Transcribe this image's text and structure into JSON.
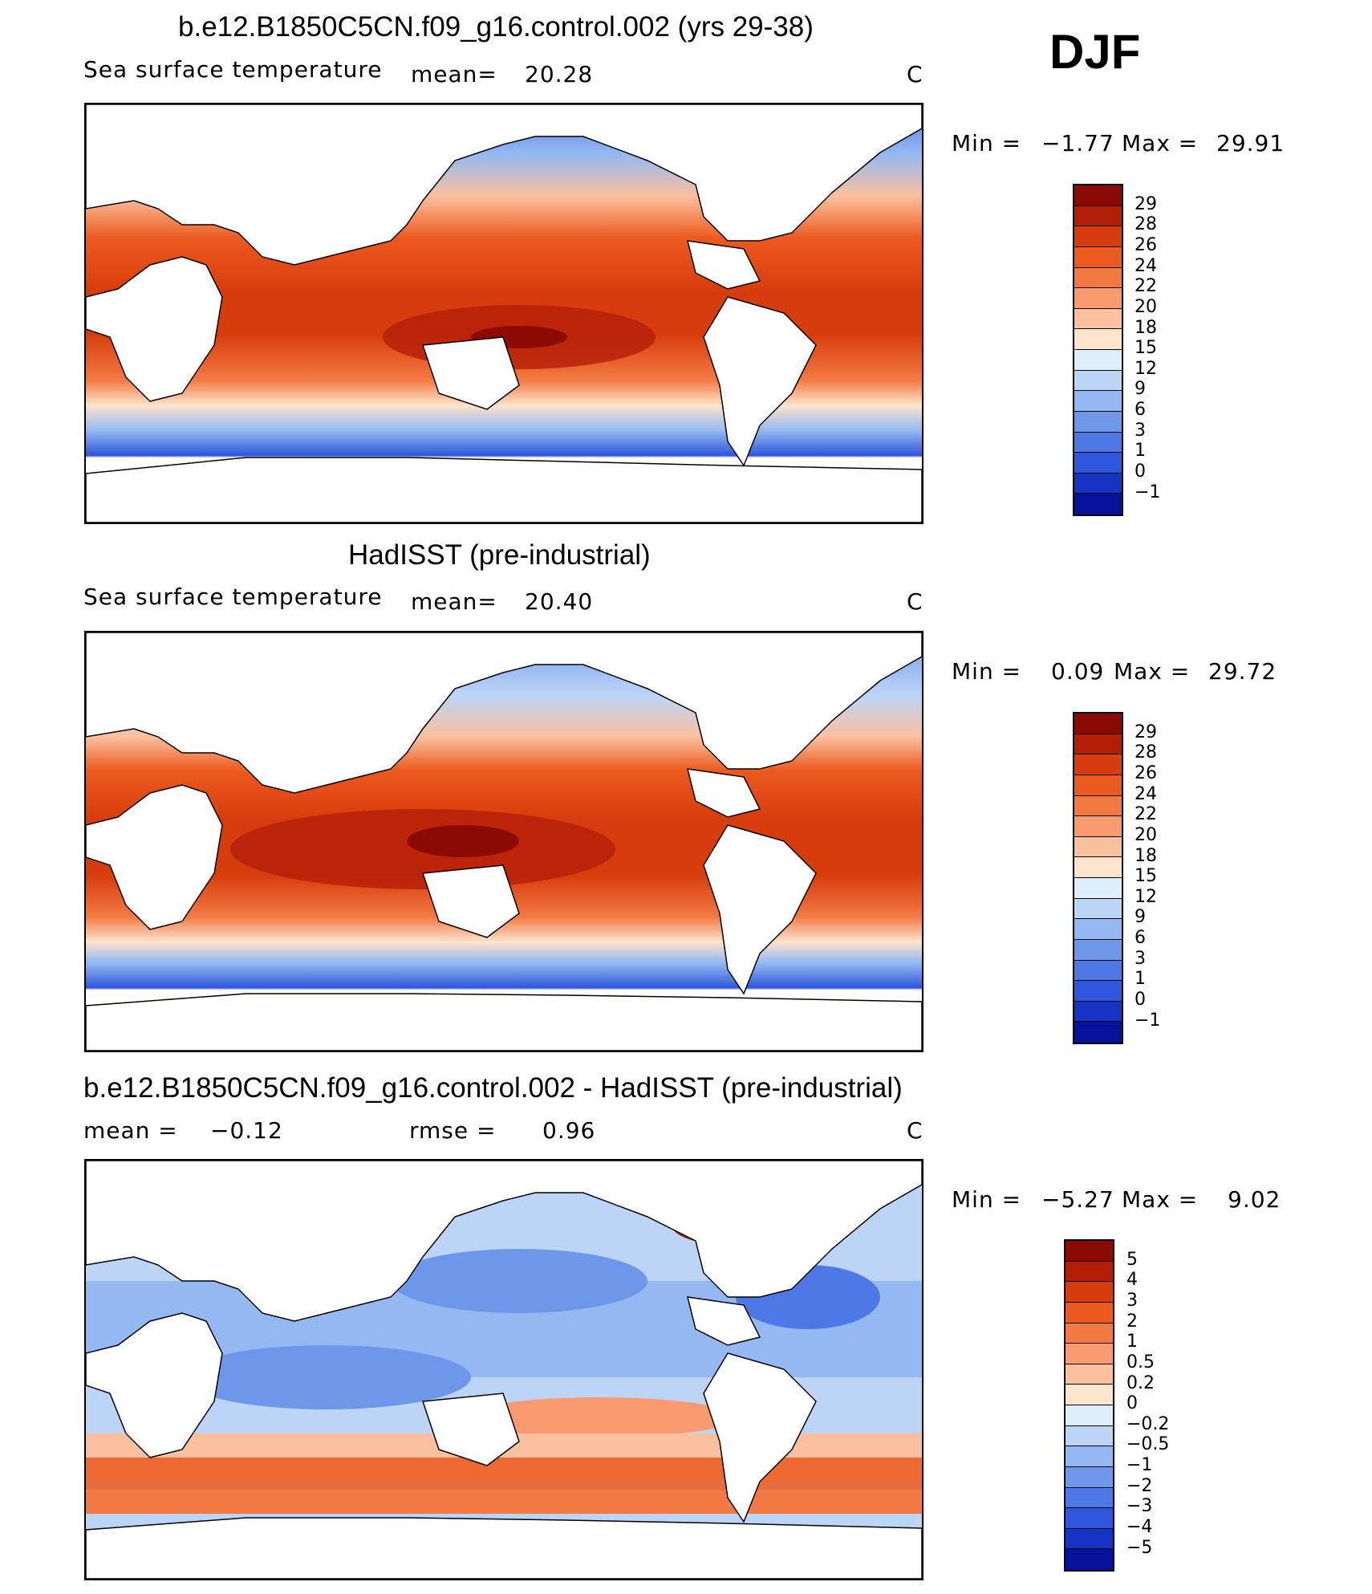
{
  "season_label": "DJF",
  "panels": [
    {
      "title": "b.e12.B1850C5CN.f09_g16.control.002 (yrs 29-38)",
      "left_label": "Sea surface temperature",
      "stat_label": "mean=",
      "stat_value": "20.28",
      "unit": "C",
      "range_text": {
        "min_label": "Min =",
        "min": "−1.77",
        "max_label": "Max =",
        "max": "29.91"
      },
      "colorbar": [
        "29",
        "28",
        "26",
        "24",
        "22",
        "20",
        "18",
        "15",
        "12",
        "9",
        "6",
        "3",
        "1",
        "0",
        "−1"
      ],
      "colors": [
        "#8b0a04",
        "#b41e07",
        "#d73c0c",
        "#ec5a1f",
        "#f47a43",
        "#f99a70",
        "#fbc09e",
        "#fde4cc",
        "#dfeefb",
        "#bcd5f7",
        "#94b9f2",
        "#6e97ea",
        "#4d78e6",
        "#2f56dc",
        "#1533c4",
        "#06119c"
      ]
    },
    {
      "title": "HadISST (pre-industrial)",
      "left_label": "Sea surface temperature",
      "stat_label": "mean=",
      "stat_value": "20.40",
      "unit": "C",
      "range_text": {
        "min_label": "Min =",
        "min": "0.09",
        "max_label": "Max =",
        "max": "29.72"
      },
      "colorbar": [
        "29",
        "28",
        "26",
        "24",
        "22",
        "20",
        "18",
        "15",
        "12",
        "9",
        "6",
        "3",
        "1",
        "0",
        "−1"
      ],
      "colors": [
        "#8b0a04",
        "#b41e07",
        "#d73c0c",
        "#ec5a1f",
        "#f47a43",
        "#f99a70",
        "#fbc09e",
        "#fde4cc",
        "#dfeefb",
        "#bcd5f7",
        "#94b9f2",
        "#6e97ea",
        "#4d78e6",
        "#2f56dc",
        "#1533c4",
        "#06119c"
      ]
    },
    {
      "title": "b.e12.B1850C5CN.f09_g16.control.002 - HadISST (pre-industrial)",
      "left_label": "mean =",
      "stat_label_left_value": "−0.12",
      "stat_label": "rmse =",
      "stat_value": "0.96",
      "unit": "C",
      "range_text": {
        "min_label": "Min =",
        "min": "−5.27",
        "max_label": "Max =",
        "max": "9.02"
      },
      "colorbar": [
        "5",
        "4",
        "3",
        "2",
        "1",
        "0.5",
        "0.2",
        "0",
        "−0.2",
        "−0.5",
        "−1",
        "−2",
        "−3",
        "−4",
        "−5"
      ],
      "colors": [
        "#8b0a04",
        "#b41e07",
        "#d73c0c",
        "#ec5a1f",
        "#f47a43",
        "#f99a70",
        "#fbc09e",
        "#fde4cc",
        "#dfeefb",
        "#bcd5f7",
        "#94b9f2",
        "#6e97ea",
        "#4d78e6",
        "#2f56dc",
        "#1533c4",
        "#06119c"
      ]
    }
  ]
}
